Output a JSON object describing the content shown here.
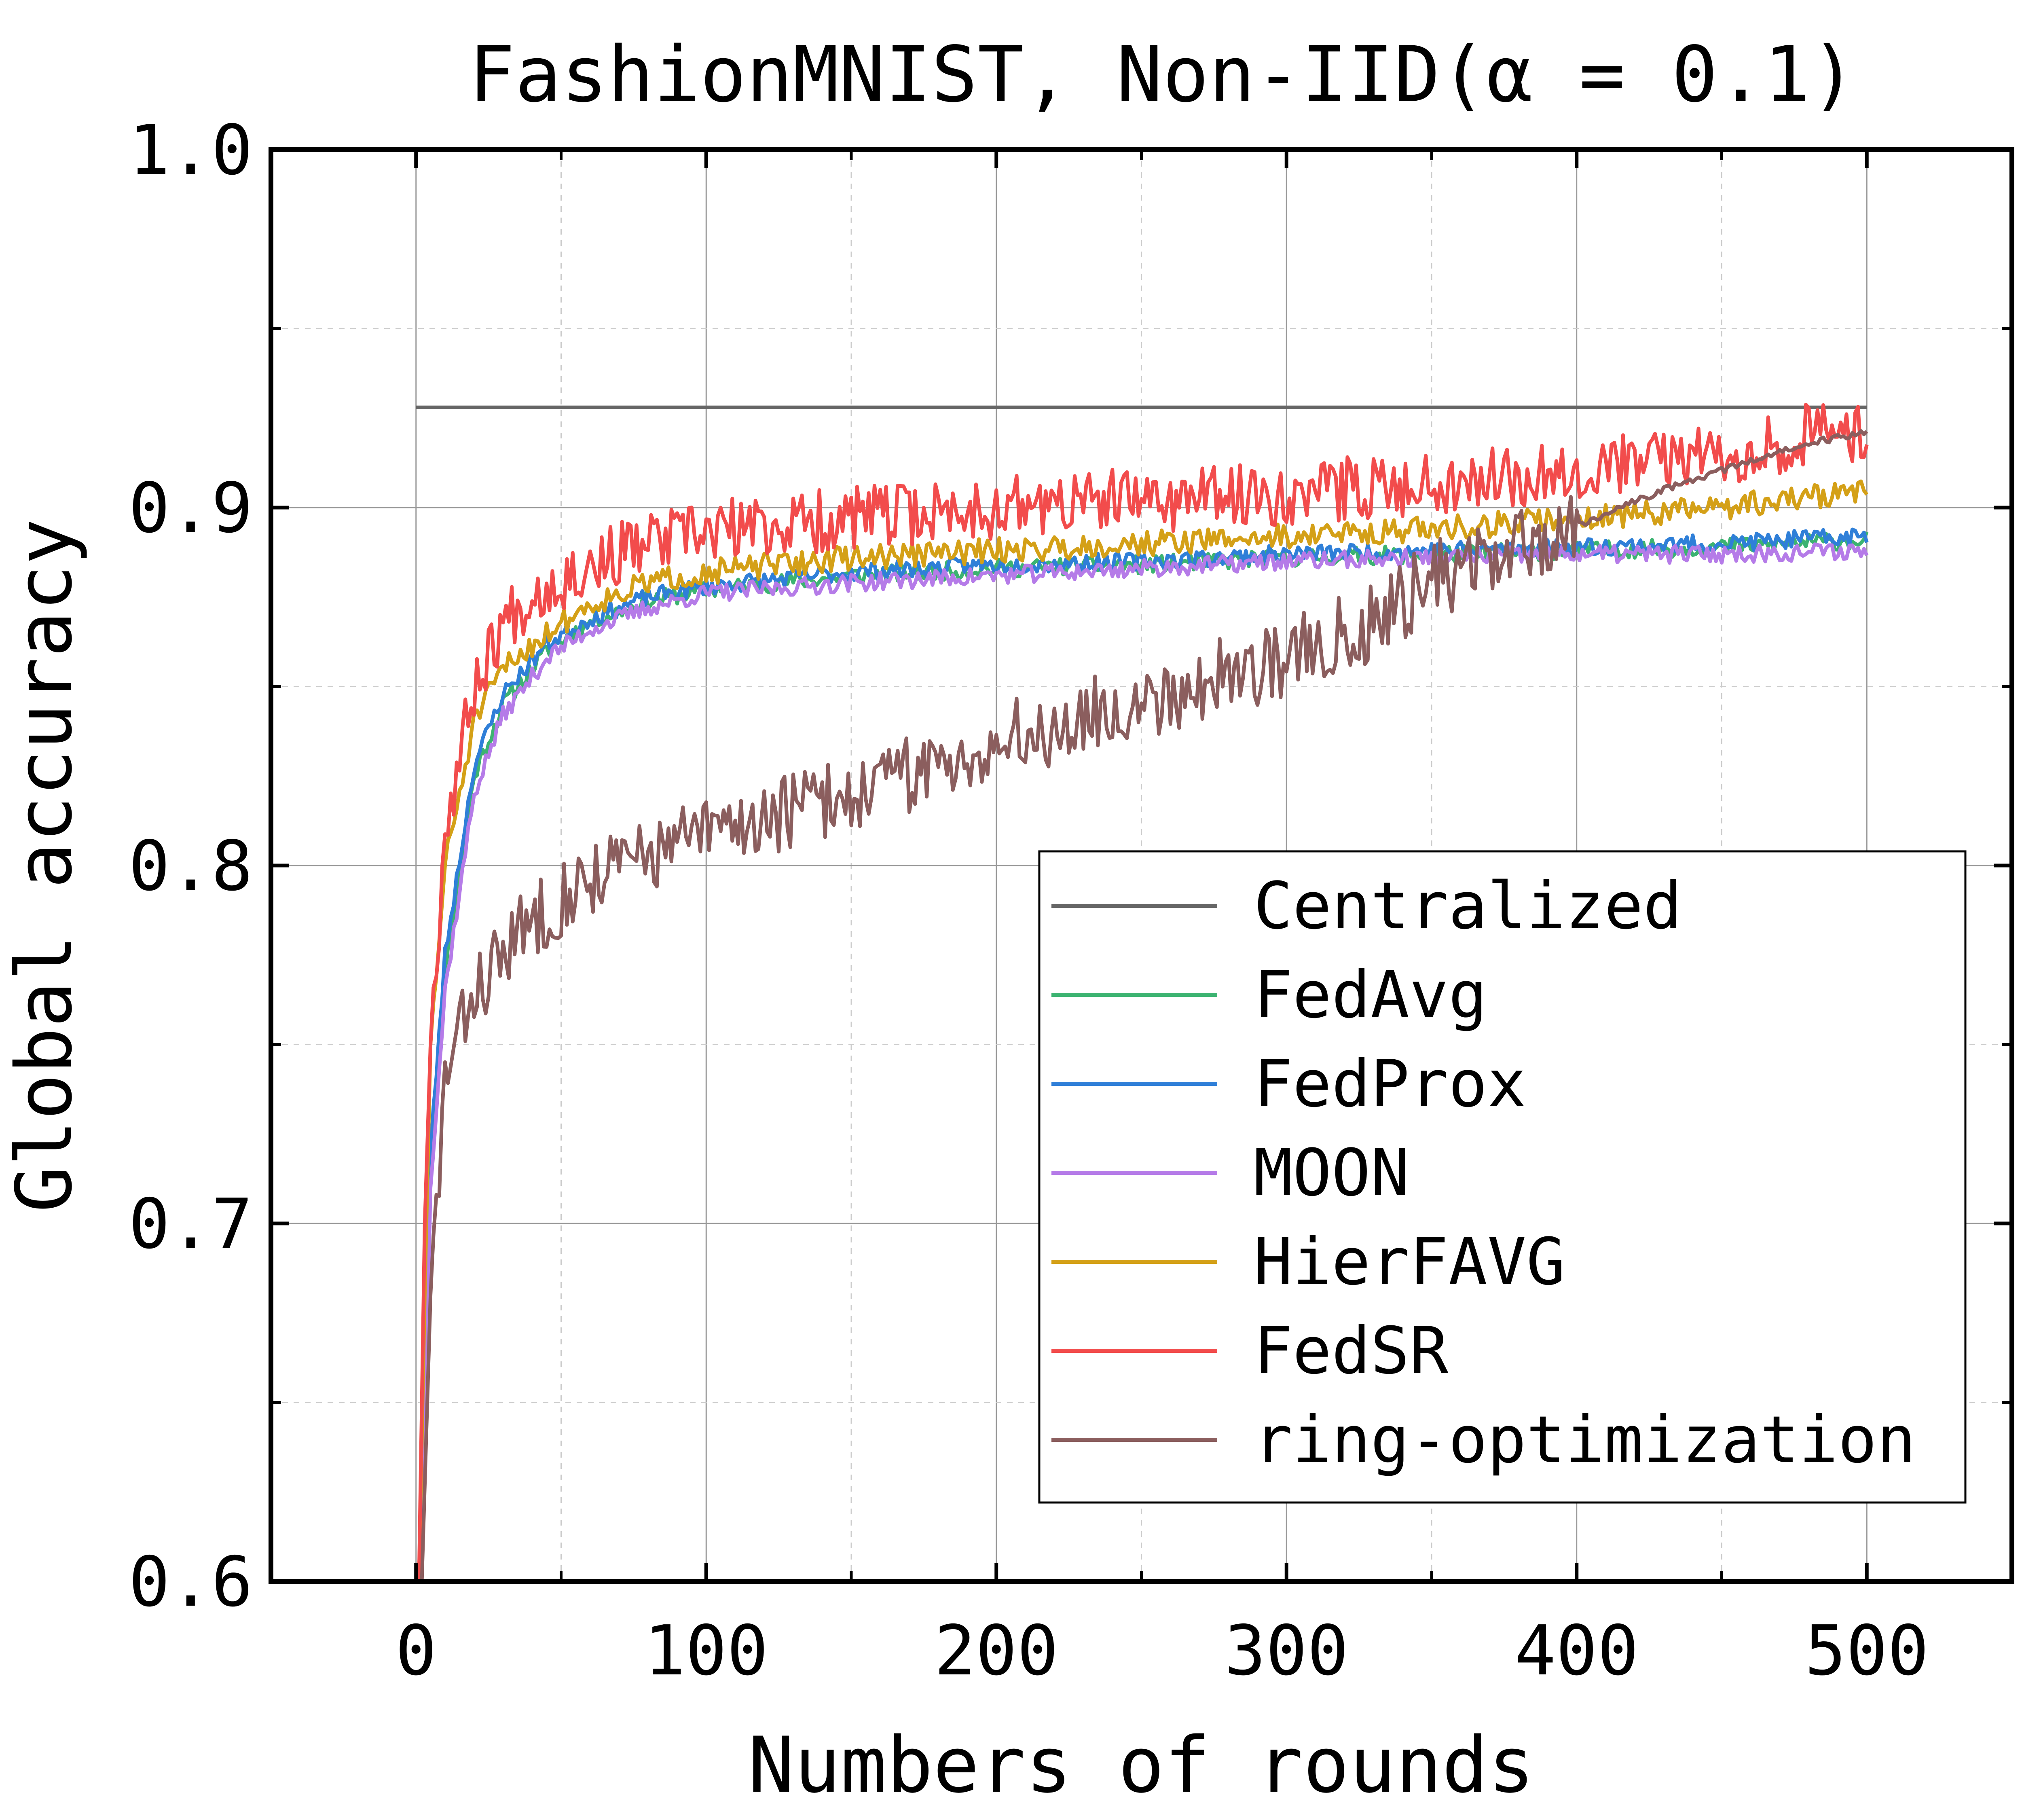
{
  "chart_data": {
    "type": "line",
    "title": "FashionMNIST, Non-IID(α = 0.1)",
    "xlabel": "Numbers of rounds",
    "ylabel": "Global accuracy",
    "xlim": [
      -50,
      550
    ],
    "ylim": [
      0.6,
      1.0
    ],
    "xticks": [
      0,
      100,
      200,
      300,
      400,
      500
    ],
    "xtick_labels": [
      "0",
      "100",
      "200",
      "300",
      "400",
      "500"
    ],
    "xminor": [
      50,
      150,
      250,
      350,
      450
    ],
    "yticks": [
      0.6,
      0.7,
      0.8,
      0.9,
      1.0
    ],
    "ytick_labels": [
      "0.6",
      "0.7",
      "0.8",
      "0.9",
      "1.0"
    ],
    "yminor": [
      0.65,
      0.75,
      0.85,
      0.95
    ],
    "grid": true,
    "legend_position": "lower-right",
    "series": [
      {
        "name": "Centralized",
        "color": "#666666",
        "style": "flat",
        "points": [
          [
            0,
            0.928
          ],
          [
            500,
            0.928
          ]
        ],
        "noise": 0,
        "seed": 1
      },
      {
        "name": "FedAvg",
        "color": "#3cb371",
        "style": "noisy",
        "points": [
          [
            1,
            0.58
          ],
          [
            3,
            0.65
          ],
          [
            5,
            0.72
          ],
          [
            10,
            0.77
          ],
          [
            20,
            0.825
          ],
          [
            30,
            0.845
          ],
          [
            45,
            0.86
          ],
          [
            60,
            0.868
          ],
          [
            80,
            0.874
          ],
          [
            100,
            0.877
          ],
          [
            150,
            0.881
          ],
          [
            200,
            0.883
          ],
          [
            250,
            0.884
          ],
          [
            300,
            0.886
          ],
          [
            350,
            0.887
          ],
          [
            400,
            0.888
          ],
          [
            450,
            0.889
          ],
          [
            500,
            0.891
          ]
        ],
        "noise": 0.0025,
        "seed": 11
      },
      {
        "name": "FedProx",
        "color": "#2f7fd8",
        "style": "noisy",
        "points": [
          [
            1,
            0.58
          ],
          [
            3,
            0.65
          ],
          [
            5,
            0.72
          ],
          [
            10,
            0.775
          ],
          [
            20,
            0.828
          ],
          [
            30,
            0.848
          ],
          [
            45,
            0.862
          ],
          [
            60,
            0.869
          ],
          [
            80,
            0.875
          ],
          [
            100,
            0.878
          ],
          [
            150,
            0.882
          ],
          [
            200,
            0.884
          ],
          [
            250,
            0.885
          ],
          [
            300,
            0.887
          ],
          [
            350,
            0.888
          ],
          [
            400,
            0.889
          ],
          [
            450,
            0.89
          ],
          [
            500,
            0.892
          ]
        ],
        "noise": 0.0025,
        "seed": 23
      },
      {
        "name": "MOON",
        "color": "#b57be8",
        "style": "noisy",
        "points": [
          [
            1,
            0.58
          ],
          [
            3,
            0.64
          ],
          [
            5,
            0.71
          ],
          [
            10,
            0.765
          ],
          [
            20,
            0.82
          ],
          [
            30,
            0.842
          ],
          [
            45,
            0.858
          ],
          [
            60,
            0.866
          ],
          [
            80,
            0.872
          ],
          [
            100,
            0.876
          ],
          [
            150,
            0.879
          ],
          [
            200,
            0.881
          ],
          [
            250,
            0.883
          ],
          [
            300,
            0.885
          ],
          [
            350,
            0.886
          ],
          [
            400,
            0.887
          ],
          [
            450,
            0.887
          ],
          [
            500,
            0.888
          ]
        ],
        "noise": 0.0025,
        "seed": 37
      },
      {
        "name": "HierFAVG",
        "color": "#d4a017",
        "style": "noisy",
        "points": [
          [
            1,
            0.6
          ],
          [
            3,
            0.68
          ],
          [
            5,
            0.75
          ],
          [
            10,
            0.8
          ],
          [
            20,
            0.84
          ],
          [
            30,
            0.855
          ],
          [
            45,
            0.865
          ],
          [
            60,
            0.873
          ],
          [
            80,
            0.879
          ],
          [
            100,
            0.882
          ],
          [
            150,
            0.886
          ],
          [
            200,
            0.888
          ],
          [
            250,
            0.89
          ],
          [
            300,
            0.892
          ],
          [
            350,
            0.894
          ],
          [
            400,
            0.897
          ],
          [
            450,
            0.9
          ],
          [
            500,
            0.905
          ]
        ],
        "noise": 0.0035,
        "seed": 51
      },
      {
        "name": "FedSR",
        "color": "#f24c4c",
        "style": "noisy",
        "points": [
          [
            1,
            0.6
          ],
          [
            3,
            0.7
          ],
          [
            5,
            0.75
          ],
          [
            10,
            0.81
          ],
          [
            20,
            0.85
          ],
          [
            30,
            0.868
          ],
          [
            40,
            0.876
          ],
          [
            60,
            0.884
          ],
          [
            80,
            0.89
          ],
          [
            100,
            0.893
          ],
          [
            150,
            0.897
          ],
          [
            200,
            0.9
          ],
          [
            250,
            0.902
          ],
          [
            300,
            0.904
          ],
          [
            350,
            0.907
          ],
          [
            400,
            0.911
          ],
          [
            450,
            0.915
          ],
          [
            480,
            0.92
          ],
          [
            500,
            0.922
          ]
        ],
        "noise": 0.009,
        "seed": 67
      },
      {
        "name": "ring-optimization",
        "color": "#8b5e5e",
        "style": "noisy",
        "points": [
          [
            2,
            0.6
          ],
          [
            5,
            0.68
          ],
          [
            10,
            0.74
          ],
          [
            20,
            0.765
          ],
          [
            40,
            0.785
          ],
          [
            60,
            0.797
          ],
          [
            80,
            0.803
          ],
          [
            100,
            0.809
          ],
          [
            150,
            0.82
          ],
          [
            200,
            0.834
          ],
          [
            250,
            0.846
          ],
          [
            300,
            0.858
          ],
          [
            330,
            0.868
          ],
          [
            350,
            0.88
          ],
          [
            380,
            0.888
          ],
          [
            400,
            0.895
          ],
          [
            430,
            0.905
          ],
          [
            460,
            0.913
          ],
          [
            480,
            0.918
          ],
          [
            500,
            0.921
          ]
        ],
        "noise": 0.011,
        "seed": 83,
        "smooth_after": 400
      }
    ]
  }
}
